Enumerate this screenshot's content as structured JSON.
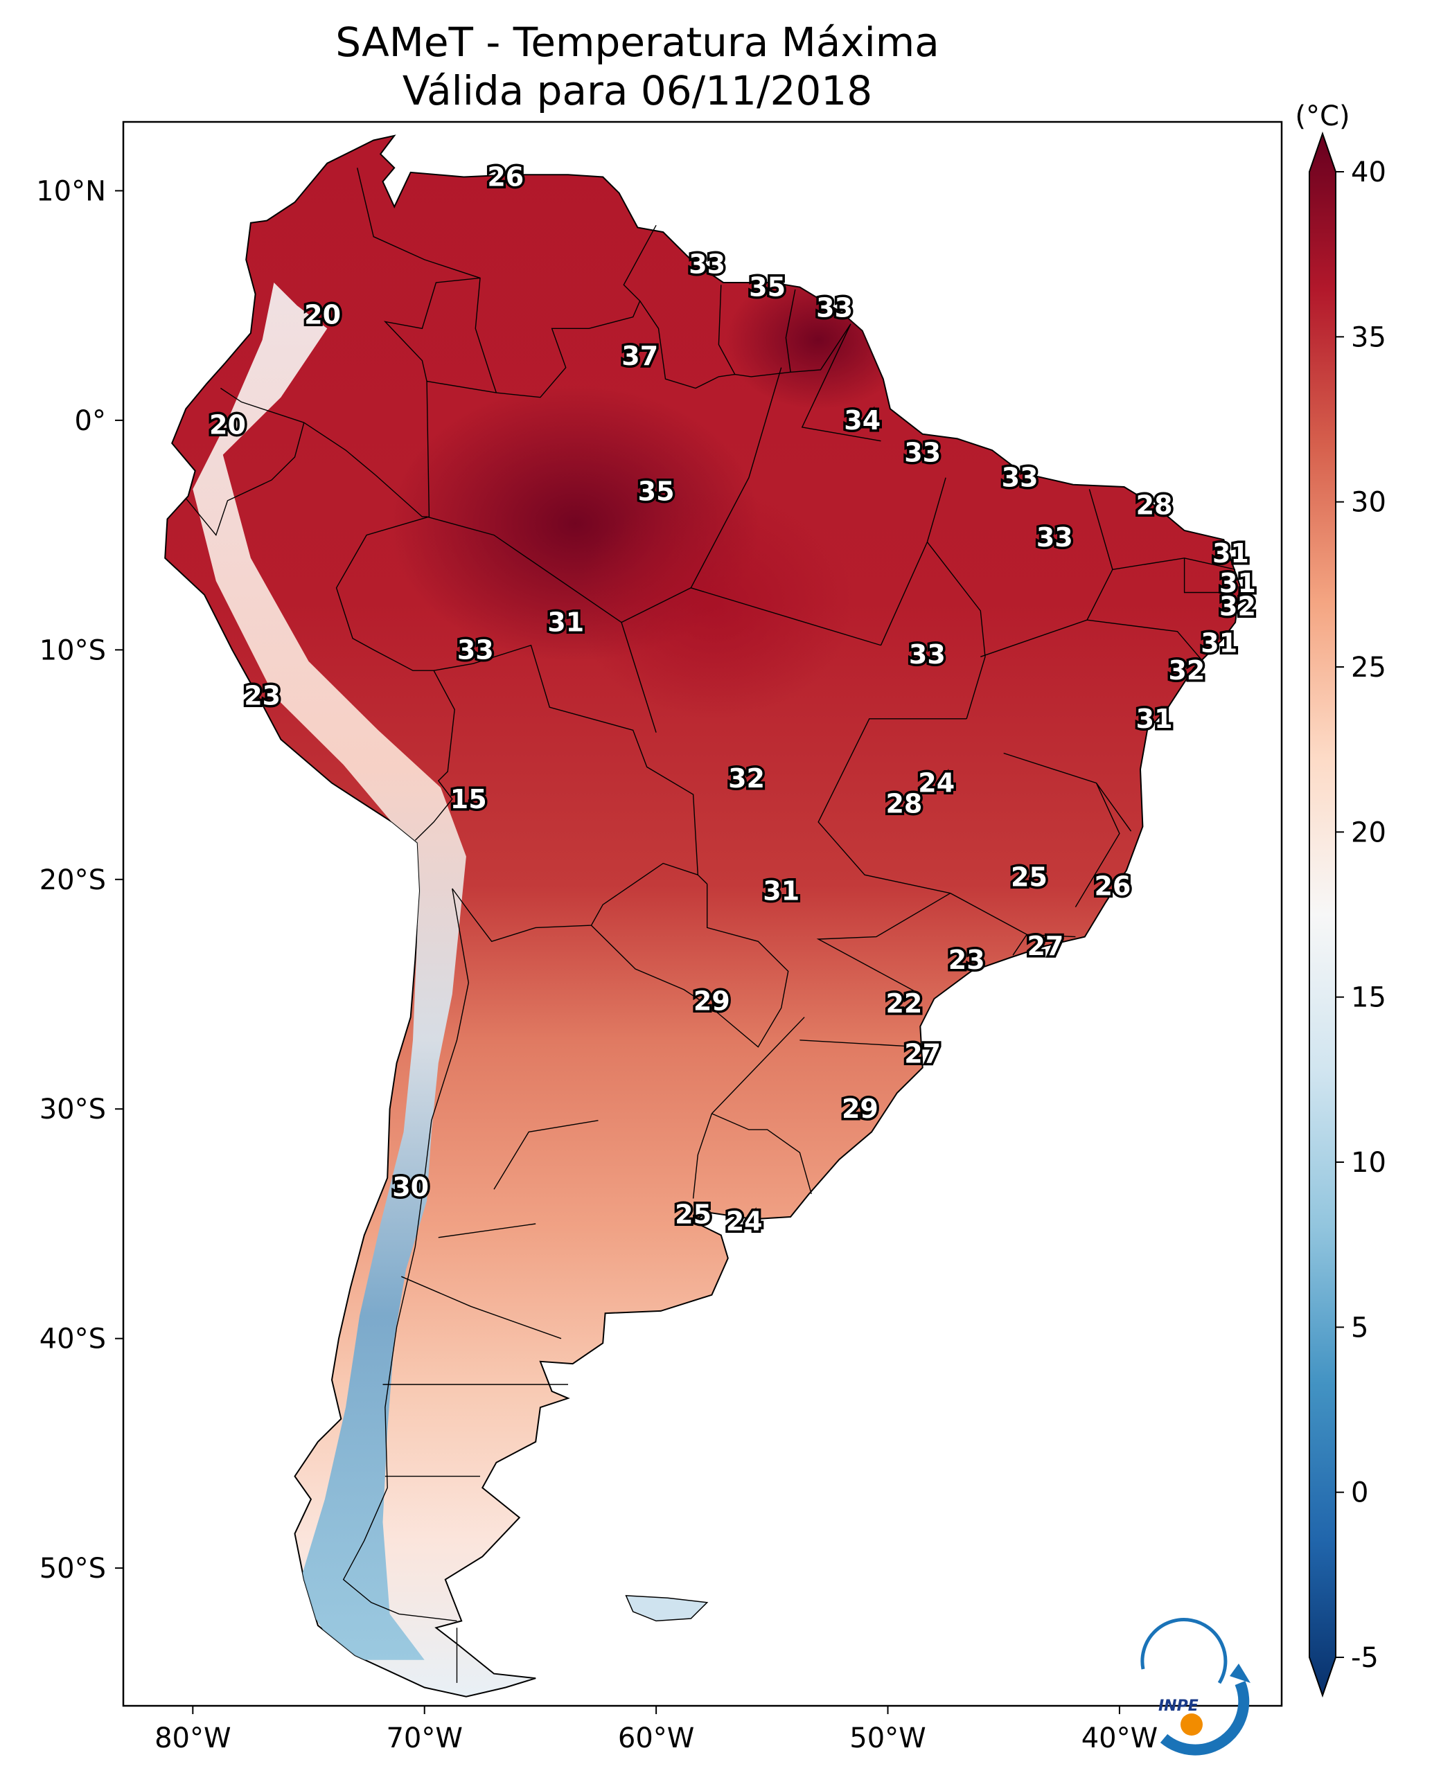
{
  "title": {
    "line1": "SAMeT - Temperatura Máxima",
    "line2": "Válida para 06/11/2018"
  },
  "map": {
    "lon_ticks": [
      "80°W",
      "70°W",
      "60°W",
      "50°W",
      "40°W"
    ],
    "lat_ticks": [
      "10°N",
      "0°",
      "10°S",
      "20°S",
      "30°S",
      "40°S",
      "50°S"
    ],
    "lon_range": [
      -83,
      -33
    ],
    "lat_range": [
      -56,
      13
    ]
  },
  "colorbar": {
    "unit": "(°C)",
    "ticks": [
      "40",
      "35",
      "30",
      "25",
      "20",
      "15",
      "10",
      "5",
      "0",
      "-5"
    ],
    "range": [
      -5,
      40
    ],
    "colors": [
      "#08306b",
      "#2166ac",
      "#4393c3",
      "#92c5de",
      "#d1e5f0",
      "#f7f7f7",
      "#fddbc7",
      "#f4a582",
      "#d6604d",
      "#b2182b",
      "#67001f"
    ]
  },
  "stations": [
    {
      "value": "26",
      "lon": -66.5,
      "lat": 10.6
    },
    {
      "value": "20",
      "lon": -74.4,
      "lat": 4.6
    },
    {
      "value": "33",
      "lon": -57.8,
      "lat": 6.8
    },
    {
      "value": "35",
      "lon": -55.2,
      "lat": 5.8
    },
    {
      "value": "33",
      "lon": -52.3,
      "lat": 4.9
    },
    {
      "value": "37",
      "lon": -60.7,
      "lat": 2.8
    },
    {
      "value": "20",
      "lon": -78.5,
      "lat": -0.2
    },
    {
      "value": "34",
      "lon": -51.1,
      "lat": 0.0
    },
    {
      "value": "33",
      "lon": -48.5,
      "lat": -1.4
    },
    {
      "value": "35",
      "lon": -60.0,
      "lat": -3.1
    },
    {
      "value": "33",
      "lon": -44.3,
      "lat": -2.5
    },
    {
      "value": "28",
      "lon": -38.5,
      "lat": -3.7
    },
    {
      "value": "33",
      "lon": -42.8,
      "lat": -5.1
    },
    {
      "value": "31",
      "lon": -35.2,
      "lat": -5.8
    },
    {
      "value": "31",
      "lon": -34.9,
      "lat": -7.1
    },
    {
      "value": "32",
      "lon": -34.9,
      "lat": -8.1
    },
    {
      "value": "31",
      "lon": -63.9,
      "lat": -8.8
    },
    {
      "value": "33",
      "lon": -67.8,
      "lat": -10.0
    },
    {
      "value": "33",
      "lon": -48.3,
      "lat": -10.2
    },
    {
      "value": "31",
      "lon": -35.7,
      "lat": -9.7
    },
    {
      "value": "32",
      "lon": -37.1,
      "lat": -10.9
    },
    {
      "value": "23",
      "lon": -77.0,
      "lat": -12.0
    },
    {
      "value": "31",
      "lon": -38.5,
      "lat": -13.0
    },
    {
      "value": "32",
      "lon": -56.1,
      "lat": -15.6
    },
    {
      "value": "24",
      "lon": -47.9,
      "lat": -15.8
    },
    {
      "value": "28",
      "lon": -49.3,
      "lat": -16.7
    },
    {
      "value": "15",
      "lon": -68.1,
      "lat": -16.5
    },
    {
      "value": "25",
      "lon": -43.9,
      "lat": -19.9
    },
    {
      "value": "26",
      "lon": -40.3,
      "lat": -20.3
    },
    {
      "value": "31",
      "lon": -54.6,
      "lat": -20.5
    },
    {
      "value": "27",
      "lon": -43.2,
      "lat": -22.9
    },
    {
      "value": "23",
      "lon": -46.6,
      "lat": -23.5
    },
    {
      "value": "22",
      "lon": -49.3,
      "lat": -25.4
    },
    {
      "value": "29",
      "lon": -57.6,
      "lat": -25.3
    },
    {
      "value": "27",
      "lon": -48.5,
      "lat": -27.6
    },
    {
      "value": "29",
      "lon": -51.2,
      "lat": -30.0
    },
    {
      "value": "30",
      "lon": -70.6,
      "lat": -33.4
    },
    {
      "value": "25",
      "lon": -58.4,
      "lat": -34.6
    },
    {
      "value": "24",
      "lon": -56.2,
      "lat": -34.9
    }
  ],
  "logo": {
    "text": "INPE"
  }
}
